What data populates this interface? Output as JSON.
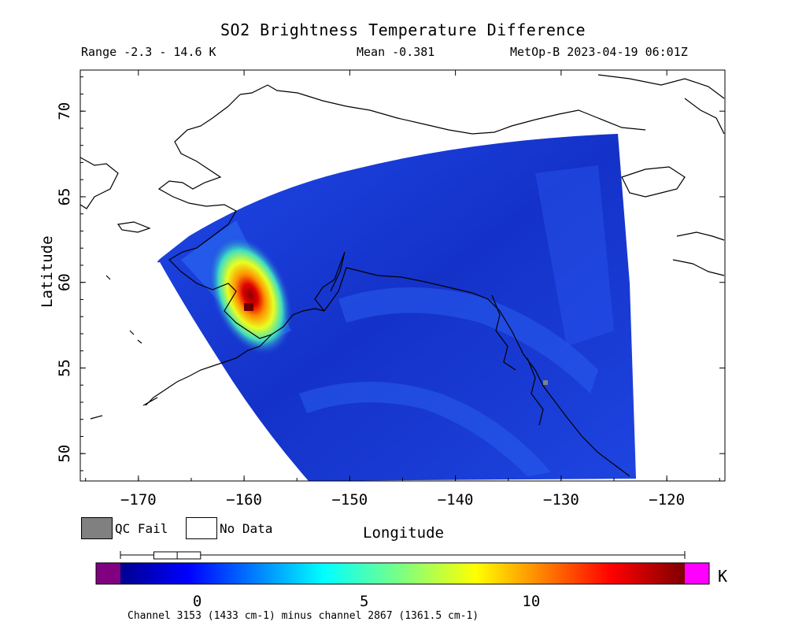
{
  "header": {
    "title": "SO2 Brightness Temperature Difference",
    "range": "Range -2.3 - 14.6 K",
    "mean": "Mean -0.381",
    "satellite_time": "MetOp-B 2023-04-19 06:01Z"
  },
  "axes": {
    "xlabel": "Longitude",
    "ylabel": "Latitude",
    "x_ticks": [
      "-170",
      "-160",
      "-150",
      "-140",
      "-130",
      "-120"
    ],
    "y_ticks": [
      "70",
      "65",
      "60",
      "55",
      "50"
    ],
    "x_range": [
      -175.5,
      -114.5
    ],
    "y_range": [
      48.4,
      72.4
    ]
  },
  "legend": {
    "qc_fail": "QC Fail",
    "no_data": "No Data",
    "qc_color": "#808080",
    "nodata_color": "#ffffff"
  },
  "colorbar": {
    "ticks": [
      "0",
      "5",
      "10"
    ],
    "range": [
      -2.3,
      14.6
    ],
    "unit": "K",
    "under_color": "#800080",
    "over_color": "#ff00ff",
    "box_q1": -1.3,
    "box_median": -0.6,
    "box_q3": 0.1
  },
  "footnote": "Channel 3153 (1433 cm-1) minus channel 2867 (1361.5 cm-1)",
  "map": {
    "background_color": "#ffffff",
    "swath_color": "#1a3ce0",
    "plume_center_lon": -159.3,
    "plume_center_lat": 58.6,
    "plume_max_value": 14.6
  }
}
